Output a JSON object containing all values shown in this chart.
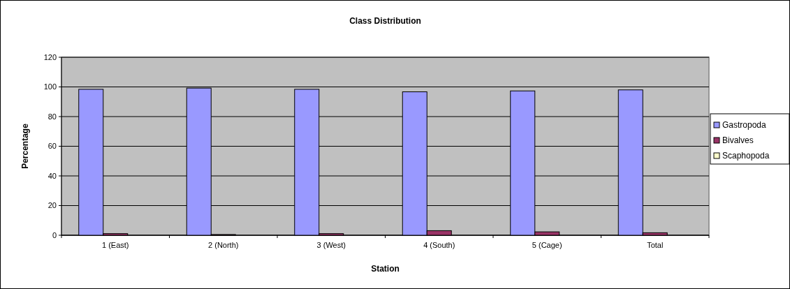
{
  "chart_data": {
    "type": "bar",
    "title": "Class Distribution",
    "xlabel": "Station",
    "ylabel": "Percentage",
    "categories": [
      "1 (East)",
      "2 (North)",
      "3 (West)",
      "4 (South)",
      "5 (Cage)",
      "Total"
    ],
    "series": [
      {
        "name": "Gastropoda",
        "color": "#9999ff",
        "values": [
          98.4,
          99.2,
          98.4,
          96.7,
          97.3,
          98.0
        ]
      },
      {
        "name": "Bivalves",
        "color": "#993366",
        "values": [
          1.1,
          0.5,
          1.1,
          3.1,
          2.3,
          1.7
        ]
      },
      {
        "name": "Scaphopoda",
        "color": "#ffffcc",
        "values": [
          0,
          0,
          0,
          0,
          0,
          0
        ]
      }
    ],
    "ylim": [
      0,
      120
    ],
    "yticks": [
      0,
      20,
      40,
      60,
      80,
      100,
      120
    ],
    "grid": "y",
    "legend": "right"
  }
}
